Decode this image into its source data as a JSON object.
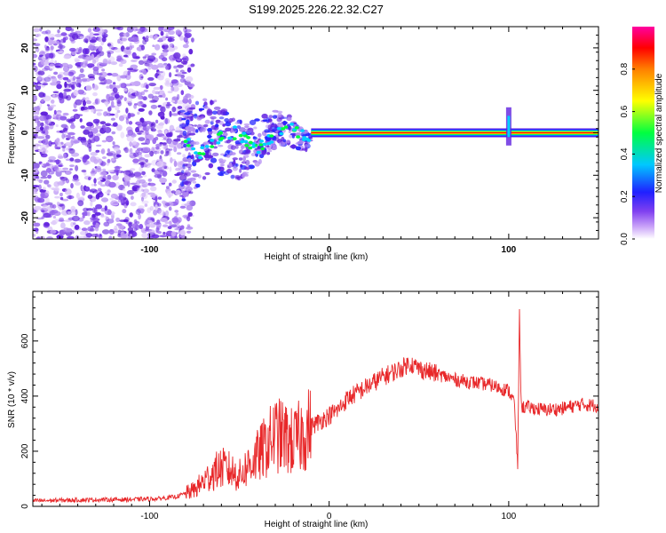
{
  "title": "S199.2025.226.22.32.C27",
  "colors": {
    "signal_line": "#e8282a",
    "noise": "#9966ee",
    "frame": "#000000"
  },
  "chart_data": [
    {
      "type": "heatmap",
      "name": "spectrogram",
      "xlabel": "Height of straight line (km)",
      "ylabel": "Frequency (Hz)",
      "xlim": [
        -165,
        150
      ],
      "ylim": [
        -25,
        25
      ],
      "xticks": [
        -100,
        0,
        100
      ],
      "xtick_labels": [
        "-100",
        "0",
        "100"
      ],
      "yticks": [
        -20,
        -10,
        0,
        10,
        20
      ],
      "ytick_labels": [
        "-20",
        "-10",
        "0",
        "10",
        "20"
      ],
      "description_values": {
        "noise_region_x": [
          -165,
          -82
        ],
        "transition_region_x": [
          -82,
          -10
        ],
        "carrier_frequency_hz": 0,
        "carrier_start_x": -10,
        "spike_x": 100
      },
      "colorbar": {
        "label": "Normalized spectral amplitude",
        "range": [
          0.0,
          1.0
        ],
        "ticks": [
          0.0,
          0.2,
          0.4,
          0.6,
          0.8
        ],
        "tick_labels": [
          "0.0",
          "0.2",
          "0.4",
          "0.6",
          "0.8"
        ],
        "stops": [
          "#ffffff",
          "#a050f0",
          "#2020ff",
          "#00d0ff",
          "#00ff40",
          "#ffff00",
          "#ff8000",
          "#ff0000",
          "#ff00a0"
        ]
      }
    },
    {
      "type": "line",
      "name": "snr",
      "xlabel": "Height of straight line (km)",
      "ylabel": "SNR (10 * v/v)",
      "xlim": [
        -165,
        150
      ],
      "ylim": [
        0,
        780
      ],
      "xticks": [
        -100,
        0,
        100
      ],
      "xtick_labels": [
        "-100",
        "0",
        "100"
      ],
      "yticks": [
        0,
        200,
        400,
        600
      ],
      "ytick_labels": [
        "0",
        "200",
        "400",
        "600"
      ],
      "series": [
        {
          "name": "SNR",
          "x": [
            -165,
            -150,
            -130,
            -110,
            -95,
            -85,
            -75,
            -70,
            -65,
            -60,
            -55,
            -50,
            -45,
            -40,
            -35,
            -30,
            -25,
            -20,
            -15,
            -10,
            -5,
            0,
            5,
            10,
            20,
            30,
            40,
            45,
            50,
            55,
            60,
            70,
            80,
            90,
            95,
            100,
            103,
            105,
            106,
            107,
            110,
            120,
            130,
            140,
            150
          ],
          "values": [
            20,
            22,
            24,
            25,
            28,
            35,
            60,
            90,
            120,
            140,
            130,
            110,
            150,
            180,
            220,
            260,
            250,
            230,
            260,
            290,
            310,
            330,
            350,
            390,
            430,
            470,
            500,
            520,
            500,
            490,
            480,
            460,
            450,
            440,
            430,
            420,
            380,
            150,
            700,
            360,
            360,
            350,
            355,
            370,
            365
          ]
        }
      ]
    }
  ]
}
